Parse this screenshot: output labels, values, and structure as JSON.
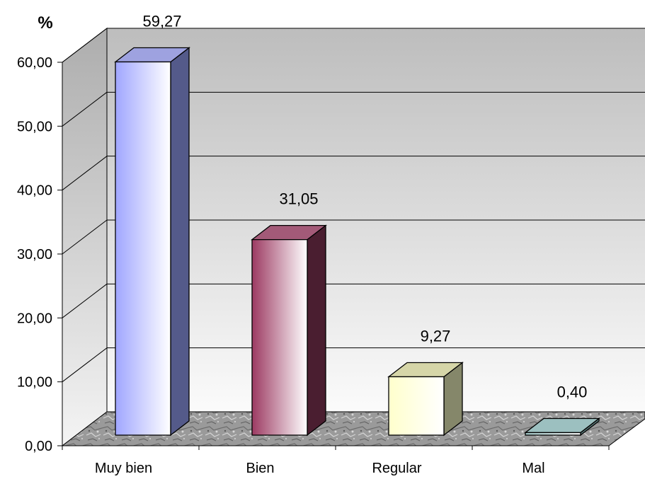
{
  "chart_data": {
    "type": "bar",
    "title": "",
    "xlabel": "",
    "ylabel": "%",
    "categories": [
      "Muy bien",
      "Bien",
      "Regular",
      "Mal"
    ],
    "values": [
      59.27,
      31.05,
      9.27,
      0.4
    ],
    "value_labels": [
      "59,27",
      "31,05",
      "9,27",
      "0,40"
    ],
    "ylim": [
      0,
      60
    ],
    "ytick_labels": [
      "0,00",
      "10,00",
      "20,00",
      "30,00",
      "40,00",
      "50,00",
      "60,00"
    ],
    "grid": true,
    "style": "3d-column",
    "bar_colors": [
      "#a0a6ff",
      "#9c3a62",
      "#ffffcc",
      "#a6cccc"
    ],
    "side_colors": [
      "#545a8a",
      "#4a1e30",
      "#85876a",
      "#5a7a7a"
    ],
    "top_colors": [
      "#9ea2e0",
      "#a35a78",
      "#d6d6a8",
      "#9cc0c0"
    ]
  }
}
